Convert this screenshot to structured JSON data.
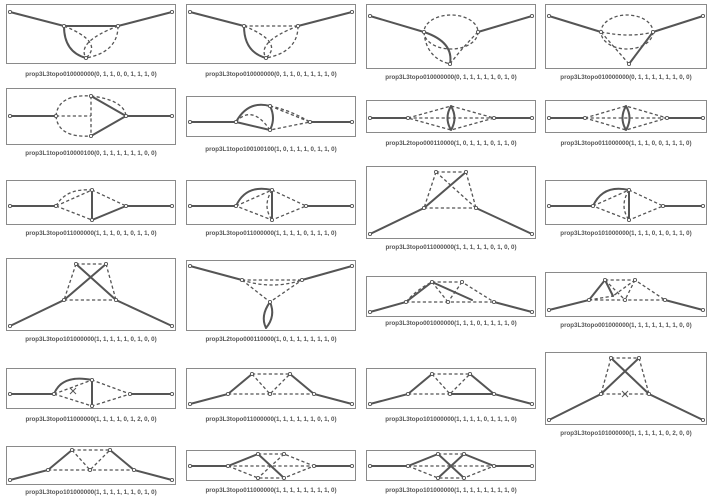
{
  "panels": [
    {
      "id": "p01",
      "caption": "prop3L3topo010000000(0, 1, 1, 0, 0, 1, 1, 1, 0)"
    },
    {
      "id": "p02",
      "caption": "prop3L3topo010000000(0, 1, 1, 0, 1, 1, 1, 1, 0)"
    },
    {
      "id": "p03",
      "caption": "prop3L3topo010000000(0, 1, 1, 1, 1, 1, 0, 1, 0)"
    },
    {
      "id": "p04",
      "caption": "prop3L3topo010000000(0, 1, 1, 1, 1, 1, 1, 0, 0)"
    },
    {
      "id": "p05",
      "caption": "prop3L1topo010000100(0, 1, 1, 1, 1, 1, 1, 0, 0)"
    },
    {
      "id": "p06",
      "caption": "prop3L1topo100100100(1, 0, 1, 1, 1, 0, 1, 1, 0)"
    },
    {
      "id": "p07",
      "caption": "prop3L2topo000110000(1, 0, 1, 1, 1, 0, 1, 1, 0)"
    },
    {
      "id": "p08",
      "caption": "prop3L3topo011000000(1, 1, 1, 0, 0, 1, 1, 1, 0)"
    },
    {
      "id": "p09",
      "caption": "prop3L3topo011000000(1, 1, 1, 0, 1, 0, 1, 1, 0)"
    },
    {
      "id": "p10",
      "caption": "prop3L3topo011000000(1, 1, 1, 1, 0, 1, 1, 1, 0)"
    },
    {
      "id": "p11",
      "caption": "prop3L3topo011000000(1, 1, 1, 1, 1, 0, 1, 0, 0)"
    },
    {
      "id": "p12",
      "caption": "prop3L3topo101000000(1, 1, 1, 0, 1, 0, 1, 1, 0)"
    },
    {
      "id": "p13",
      "caption": "prop3L3topo101000000(1, 1, 1, 1, 1, 0, 1, 0, 0)"
    },
    {
      "id": "p14",
      "caption": "prop3L2topo000110000(1, 0, 1, 1, 1, 1, 1, 1, 0)"
    },
    {
      "id": "p15",
      "caption": "prop3L3topo001000000(1, 1, 1, 0, 1, 1, 1, 1, 0)"
    },
    {
      "id": "p16",
      "caption": "prop3L3topo001000000(1, 1, 1, 1, 1, 1, 1, 0, 0)"
    },
    {
      "id": "p17",
      "caption": "prop3L3topo011000000(1, 1, 1, 1, 0, 1, 2, 0, 0)"
    },
    {
      "id": "p18",
      "caption": "prop3L3topo011000000(1, 1, 1, 1, 1, 1, 0, 1, 0)"
    },
    {
      "id": "p19",
      "caption": "prop3L3topo101000000(1, 1, 1, 1, 0, 1, 1, 1, 0)"
    },
    {
      "id": "p20",
      "caption": "prop3L3topo101000000(1, 1, 1, 1, 1, 0, 2, 0, 0)"
    },
    {
      "id": "p21",
      "caption": "prop3L3topo101000000(1, 1, 1, 1, 1, 1, 0, 1, 0)"
    },
    {
      "id": "p22",
      "caption": "prop3L3topo011000000(1, 1, 1, 1, 1, 1, 1, 1, 0)"
    },
    {
      "id": "p23",
      "caption": "prop3L3topo101000000(1, 1, 1, 1, 1, 1, 1, 1, 0)"
    }
  ]
}
